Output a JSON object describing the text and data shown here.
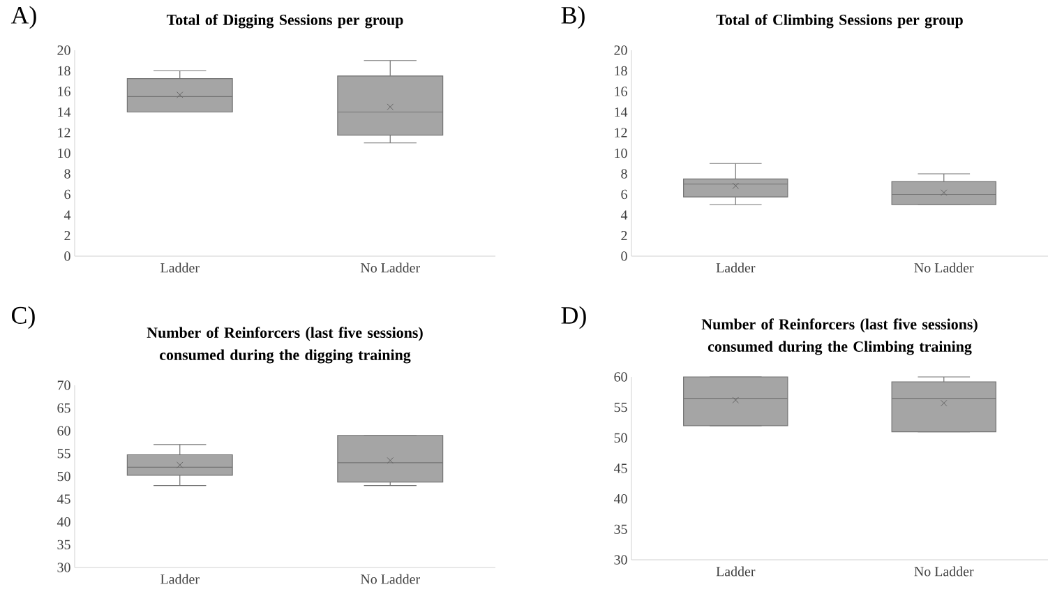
{
  "chart_data": [
    {
      "type": "box",
      "title": "Total of Digging Sessions per group",
      "annotations": [
        "A)"
      ],
      "categories": [
        "Ladder",
        "No Ladder"
      ],
      "color": "#a5a5a5",
      "ylim": [
        0,
        20
      ],
      "yticks": [
        0,
        2,
        4,
        6,
        8,
        10,
        12,
        14,
        16,
        18,
        20
      ],
      "boxes": [
        {
          "low": 14,
          "q1": 14,
          "median": 15.5,
          "q3": 17.25,
          "high": 18,
          "mean": 15.67
        },
        {
          "low": 11,
          "q1": 11.75,
          "median": 14,
          "q3": 17.5,
          "high": 19,
          "mean": 14.5
        }
      ]
    },
    {
      "type": "box",
      "title": "Total of Climbing Sessions per group",
      "annotations": [
        "B)"
      ],
      "categories": [
        "Ladder",
        "No Ladder"
      ],
      "color": "#a5a5a5",
      "ylim": [
        0,
        20
      ],
      "yticks": [
        0,
        2,
        4,
        6,
        8,
        10,
        12,
        14,
        16,
        18,
        20
      ],
      "boxes": [
        {
          "low": 5,
          "q1": 5.75,
          "median": 7,
          "q3": 7.5,
          "high": 9,
          "mean": 6.83
        },
        {
          "low": 5,
          "q1": 5,
          "median": 6,
          "q3": 7.25,
          "high": 8,
          "mean": 6.17
        }
      ]
    },
    {
      "type": "box",
      "title": "Number of Reinforcers (last five sessions) consumed during the digging training",
      "annotations": [
        "C)"
      ],
      "categories": [
        "Ladder",
        "No Ladder"
      ],
      "color": "#a5a5a5",
      "ylim": [
        30,
        70
      ],
      "yticks": [
        30,
        35,
        40,
        45,
        50,
        55,
        60,
        65,
        70
      ],
      "boxes": [
        {
          "low": 48,
          "q1": 50.25,
          "median": 52,
          "q3": 54.75,
          "high": 57,
          "mean": 52.5
        },
        {
          "low": 48,
          "q1": 48.75,
          "median": 53,
          "q3": 59,
          "high": 59,
          "mean": 53.5
        }
      ]
    },
    {
      "type": "box",
      "title": "Number of Reinforcers (last five sessions) consumed during the Climbing training",
      "annotations": [
        "D)"
      ],
      "categories": [
        "Ladder",
        "No Ladder"
      ],
      "color": "#a5a5a5",
      "ylim": [
        30,
        60
      ],
      "yticks": [
        30,
        35,
        40,
        45,
        50,
        55,
        60
      ],
      "boxes": [
        {
          "low": 52,
          "q1": 52,
          "median": 56.5,
          "q3": 60,
          "high": 60,
          "mean": 56.2
        },
        {
          "low": 51,
          "q1": 51,
          "median": 56.5,
          "q3": 59.2,
          "high": 60,
          "mean": 55.7
        }
      ]
    }
  ]
}
